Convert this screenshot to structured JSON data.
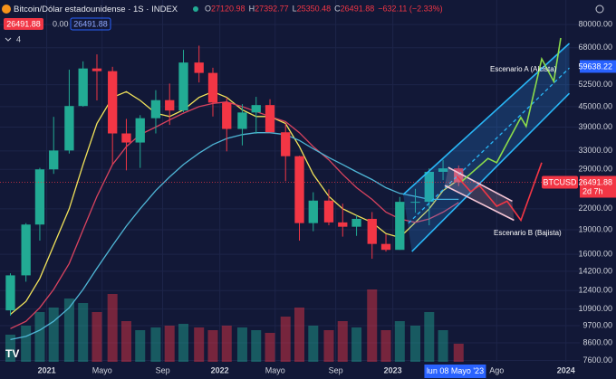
{
  "header": {
    "symbol": "Bitcoin/Dólar estadounidense · 1S · INDEX",
    "quote": [
      {
        "key": "O",
        "value": 27120.98
      },
      {
        "key": "H",
        "value": 27392.77
      },
      {
        "key": "L",
        "value": 25350.48
      },
      {
        "key": "C",
        "value": 26491.88
      }
    ],
    "change": "−632.11 (−2.33%)",
    "inputs": [
      "26491.88",
      "0.00",
      "26491.88"
    ],
    "indicator_count": 4
  },
  "chart_data": {
    "type": "candlestick",
    "log": true,
    "grid": true,
    "up_color": "#22ab94",
    "down_color": "#f23645",
    "x": [
      2020.79,
      2020.88,
      2020.96,
      2021.04,
      2021.13,
      2021.21,
      2021.29,
      2021.38,
      2021.46,
      2021.54,
      2021.63,
      2021.71,
      2021.79,
      2021.88,
      2021.96,
      2022.04,
      2022.13,
      2022.21,
      2022.29,
      2022.38,
      2022.46,
      2022.54,
      2022.63,
      2022.71,
      2022.79,
      2022.88,
      2022.96,
      2023.04,
      2023.13,
      2023.21,
      2023.29,
      2023.38
    ],
    "open": [
      10800,
      13800,
      19700,
      29000,
      33100,
      45200,
      58800,
      57700,
      37300,
      35000,
      41500,
      47100,
      43800,
      61300,
      57000,
      46300,
      38500,
      43200,
      45500,
      37600,
      31800,
      19900,
      23300,
      20000,
      19400,
      20500,
      17200,
      16500,
      23100,
      23100,
      28500,
      29200
    ],
    "high": [
      14000,
      19900,
      29300,
      41900,
      58300,
      61800,
      64900,
      59500,
      41300,
      42400,
      50500,
      52900,
      67000,
      69000,
      59100,
      48000,
      45800,
      48200,
      47400,
      40000,
      31900,
      24700,
      25200,
      22800,
      21000,
      21500,
      18400,
      23900,
      25300,
      29200,
      31000,
      29800
    ],
    "low": [
      10400,
      13200,
      17600,
      28100,
      32400,
      45000,
      47000,
      30000,
      28800,
      29300,
      37300,
      39600,
      43300,
      53300,
      42000,
      32900,
      34300,
      37200,
      37600,
      26700,
      17600,
      18800,
      19600,
      18100,
      18200,
      15500,
      16300,
      16500,
      21400,
      19600,
      26900,
      25800
    ],
    "close": [
      13800,
      19700,
      29000,
      33100,
      45200,
      58800,
      57700,
      37300,
      35000,
      41500,
      47100,
      43800,
      61300,
      57000,
      46300,
      38500,
      43200,
      45500,
      37600,
      31800,
      19900,
      23300,
      20000,
      19400,
      20500,
      17200,
      16500,
      23100,
      23100,
      28500,
      29200,
      26491.88
    ],
    "volume": [
      30,
      40,
      55,
      60,
      70,
      65,
      55,
      75,
      45,
      35,
      38,
      40,
      42,
      38,
      35,
      40,
      38,
      35,
      32,
      50,
      60,
      40,
      35,
      45,
      38,
      80,
      35,
      45,
      40,
      55,
      35,
      20
    ],
    "volume_ylim": [
      0,
      100
    ],
    "series": [
      {
        "color": "#f2e35a",
        "values": [
          10500,
          11500,
          13500,
          17000,
          22000,
          30000,
          40000,
          48000,
          50000,
          47000,
          43000,
          42000,
          44000,
          48000,
          50000,
          48000,
          44000,
          42000,
          42000,
          40000,
          34000,
          28000,
          24000,
          22000,
          21000,
          20000,
          18500,
          18000,
          20000,
          22000,
          25000,
          27000
        ]
      },
      {
        "color": "#d9435f",
        "values": [
          9500,
          10000,
          11000,
          12500,
          15000,
          19000,
          24000,
          30000,
          34000,
          37000,
          39000,
          41000,
          43000,
          45000,
          46000,
          46500,
          45000,
          43500,
          42000,
          40500,
          37500,
          34000,
          31000,
          28000,
          25500,
          23500,
          21500,
          20500,
          20000,
          20500,
          21500,
          23000
        ]
      },
      {
        "color": "#4fb6d6",
        "values": [
          8800,
          9000,
          9400,
          10000,
          11000,
          12500,
          14500,
          17000,
          19500,
          22000,
          25000,
          27500,
          30000,
          32500,
          34500,
          36000,
          37000,
          37500,
          37500,
          37000,
          35500,
          33500,
          31500,
          30000,
          28500,
          27000,
          25500,
          24500,
          24000,
          23500,
          23500,
          23500
        ]
      }
    ],
    "xlim": [
      2020.73,
      2024.08
    ],
    "xticks": [
      2021,
      {
        "value": 2021.32,
        "label": "Mayo"
      },
      {
        "value": 2021.67,
        "label": "Sep"
      },
      2022,
      {
        "value": 2022.32,
        "label": "Mayo"
      },
      {
        "value": 2022.67,
        "label": "Sep"
      },
      2023,
      {
        "value": 2023.6,
        "label": "Ago"
      },
      2024
    ],
    "crosshair_x": {
      "value": 2023.36,
      "label": "lun 08 Mayo '23"
    },
    "ylim": [
      7530,
      95000
    ],
    "yticks": [
      {
        "value": 80000,
        "label": "80000.00"
      },
      {
        "value": 68000,
        "label": "68000.00"
      },
      {
        "value": 52500,
        "label": "52500.00"
      },
      {
        "value": 45000,
        "label": "45000.00"
      },
      {
        "value": 39000,
        "label": "39000.00"
      },
      {
        "value": 33000,
        "label": "33000.00"
      },
      {
        "value": 29000,
        "label": "29000.00"
      },
      {
        "value": 22000,
        "label": "22000.00"
      },
      {
        "value": 19000,
        "label": "19000.00"
      },
      {
        "value": 16000,
        "label": "16000.00"
      },
      {
        "value": 14200,
        "label": "14200.00"
      },
      {
        "value": 12400,
        "label": "12400.00"
      },
      {
        "value": 10900,
        "label": "10900.00"
      },
      {
        "value": 9700,
        "label": "9700.00"
      },
      {
        "value": 8600,
        "label": "8600.00"
      },
      {
        "value": 7600,
        "label": "7600.00"
      }
    ],
    "price_line": {
      "symbol": "BTCUSD",
      "value": 26491.88,
      "countdown": "2d 7h",
      "color": "#f23645"
    },
    "marker": {
      "value": 59638.22,
      "color": "#2962ff"
    },
    "channel": {
      "color": "#29b6f6",
      "fill": "rgba(41,150,246,0.22)",
      "upper": {
        "x": [
          2023.06,
          2024.02
        ],
        "values": [
          24300,
          70100
        ]
      },
      "middle": {
        "x": [
          2023.09,
          2024.02
        ],
        "values": [
          19900,
          59000
        ]
      },
      "lower": {
        "x": [
          2023.11,
          2024.02
        ],
        "values": [
          16300,
          49400
        ]
      }
    },
    "bear_channel": {
      "color": "#f7c6d6",
      "fill": "rgba(247,198,214,0.18)",
      "upper": {
        "x": [
          2023.32,
          2023.69
        ],
        "values": [
          29400,
          23200
        ]
      },
      "lower": {
        "x": [
          2023.3,
          2023.7
        ],
        "values": [
          25900,
          20300
        ]
      }
    },
    "scenarios": [
      {
        "name": "Escenario A (Alcista)",
        "color": "#8bdc4a",
        "x": [
          2023.4,
          2023.55,
          2023.6,
          2023.74,
          2023.77,
          2023.86,
          2023.93,
          2023.97
        ],
        "values": [
          26700,
          31300,
          30400,
          41700,
          39200,
          62900,
          53700,
          72800
        ]
      },
      {
        "name": "Escenario B (Bajista)",
        "color": "#f23645",
        "x": [
          2023.37,
          2023.45,
          2023.5,
          2023.6,
          2023.66,
          2023.74,
          2023.86
        ],
        "values": [
          27600,
          24800,
          25900,
          22400,
          23200,
          20300,
          30400
        ]
      }
    ]
  }
}
